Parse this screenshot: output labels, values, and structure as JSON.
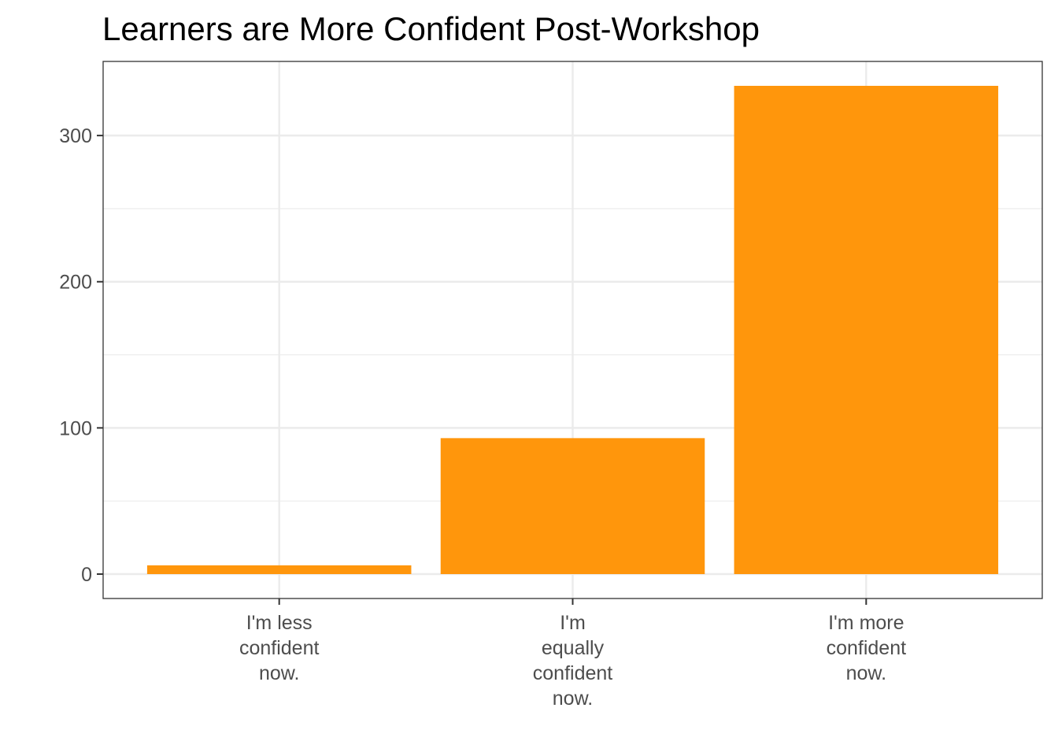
{
  "chart_data": {
    "type": "bar",
    "title": "Learners are More Confident Post-Workshop",
    "xlabel": "",
    "ylabel": "",
    "categories": [
      [
        "I'm less",
        "confident",
        "now."
      ],
      [
        "I'm",
        "equally",
        "confident",
        "now."
      ],
      [
        "I'm more",
        "confident",
        "now."
      ]
    ],
    "values": [
      6,
      93,
      334
    ],
    "ylim": [
      -16.7,
      350.7
    ],
    "yticks": [
      0,
      100,
      200,
      300
    ],
    "yminor": [
      50,
      150,
      250
    ],
    "grid": true,
    "bar_color": "#FF960C",
    "grid_color": "#EBEBEB",
    "axis_color": "#333333"
  }
}
